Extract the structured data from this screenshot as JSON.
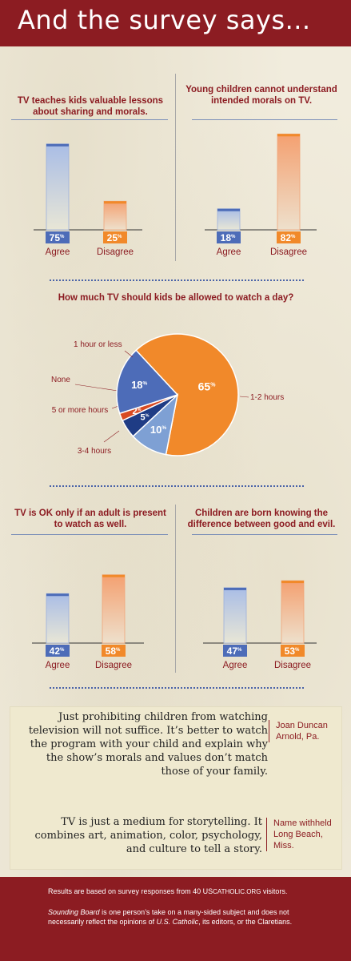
{
  "header": {
    "title": "And the survey says..."
  },
  "colors": {
    "brand": "#8c1c22",
    "blue": "#4d6cb8",
    "orange": "#f1892a",
    "navy": "#1f3c85",
    "red": "#d84a22",
    "lightblue": "#7ea0d4"
  },
  "questions": {
    "q1": "TV teaches kids valuable lessons about sharing and morals.",
    "q2": "Young children cannot understand intended morals on TV.",
    "q3": "How much TV should kids be allowed to watch a day?",
    "q4": "TV is OK only if an adult is present to watch as well.",
    "q5": "Children are born knowing the difference between good and evil."
  },
  "chart_data": [
    {
      "type": "bar",
      "title": "TV teaches kids valuable lessons about sharing and morals.",
      "categories": [
        "Agree",
        "Disagree"
      ],
      "values": [
        75,
        25
      ],
      "unit": "%"
    },
    {
      "type": "bar",
      "title": "Young children cannot understand intended morals on TV.",
      "categories": [
        "Agree",
        "Disagree"
      ],
      "values": [
        18,
        82
      ],
      "unit": "%"
    },
    {
      "type": "pie",
      "title": "How much TV should kids be allowed to watch a day?",
      "slices": [
        {
          "label": "1-2 hours",
          "value": 65,
          "color": "#f1892a"
        },
        {
          "label": "3-4 hours",
          "value": 10,
          "color": "#7ea0d4"
        },
        {
          "label": "5 or more hours",
          "value": 5,
          "color": "#1f3c85"
        },
        {
          "label": "None",
          "value": 2,
          "color": "#d84a22"
        },
        {
          "label": "1 hour or less",
          "value": 18,
          "color": "#4d6cb8"
        }
      ],
      "unit": "%"
    },
    {
      "type": "bar",
      "title": "TV is OK only if an adult is present to watch as well.",
      "categories": [
        "Agree",
        "Disagree"
      ],
      "values": [
        42,
        58
      ],
      "unit": "%"
    },
    {
      "type": "bar",
      "title": "Children are born knowing the difference between good and evil.",
      "categories": [
        "Agree",
        "Disagree"
      ],
      "values": [
        47,
        53
      ],
      "unit": "%"
    }
  ],
  "quotes": [
    {
      "text": "Just prohibiting children from watching television will not suffice. It’s better to watch the program with your child and explain why the show’s morals and values don’t match those of your family.",
      "name": "Joan Duncan",
      "place": "Arnold, Pa."
    },
    {
      "text": "TV is just a medium for storytelling. It combines art, animation, color, psychology, and culture to tell a story.",
      "name": "Name withheld",
      "place": "Long Beach, Miss."
    }
  ],
  "footer": {
    "results_pre": "Results are based on survey responses from 40 US",
    "results_brand": "Catholic.org",
    "results_post": " visitors.",
    "note_title": "Sounding Board",
    "note_mid1": " is one person’s take on a many-sided subject and does not necessarily reflect the opinions of ",
    "note_pub": "U.S. Catholic",
    "note_end": ", its editors, or the Claretians."
  }
}
